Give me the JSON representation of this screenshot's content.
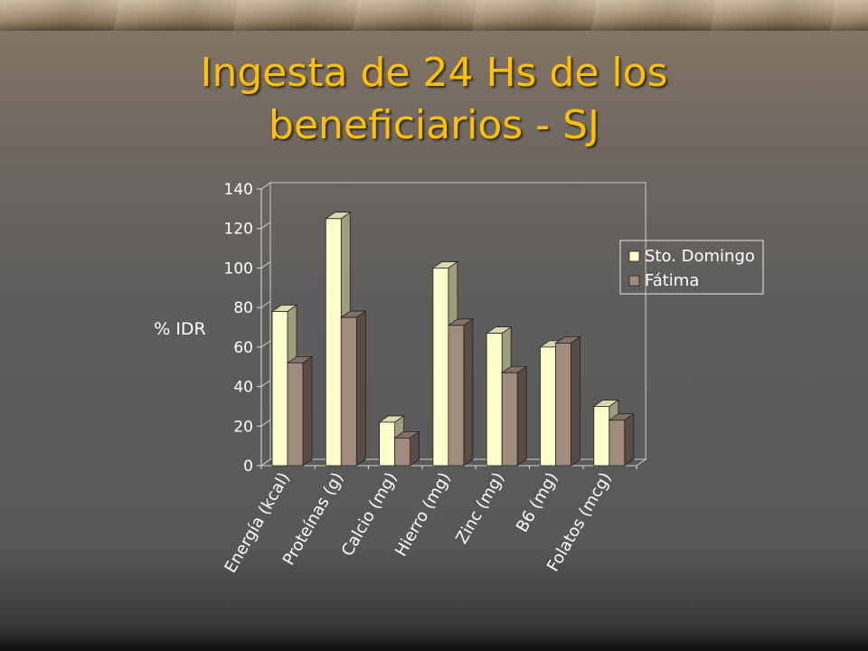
{
  "slide": {
    "title_line1": "Ingesta de 24 Hs de los",
    "title_line2": "beneficiarios - SJ",
    "title_color": "#ffc000",
    "background_color": "#5a5a5a"
  },
  "chart_data": {
    "type": "bar",
    "style": "3d-clustered-column",
    "ylabel": "% IDR",
    "xlabel": "",
    "ylim": [
      0,
      140
    ],
    "yticks": [
      0,
      20,
      40,
      60,
      80,
      100,
      120,
      140
    ],
    "grid": false,
    "legend_position": "right",
    "categories": [
      "Energía (kcal)",
      "Proteínas (g)",
      "Calcio (mg)",
      "Hierro (mg)",
      "Zinc (mg)",
      "B6 (mg)",
      "Folatos (mcg)"
    ],
    "series": [
      {
        "name": "Sto. Domingo",
        "color": "#ffffcc",
        "values": [
          78,
          125,
          22,
          100,
          67,
          60,
          30
        ]
      },
      {
        "name": "Fátima",
        "color": "#a08c7e",
        "values": [
          52,
          75,
          14,
          71,
          47,
          62,
          23
        ]
      }
    ]
  }
}
